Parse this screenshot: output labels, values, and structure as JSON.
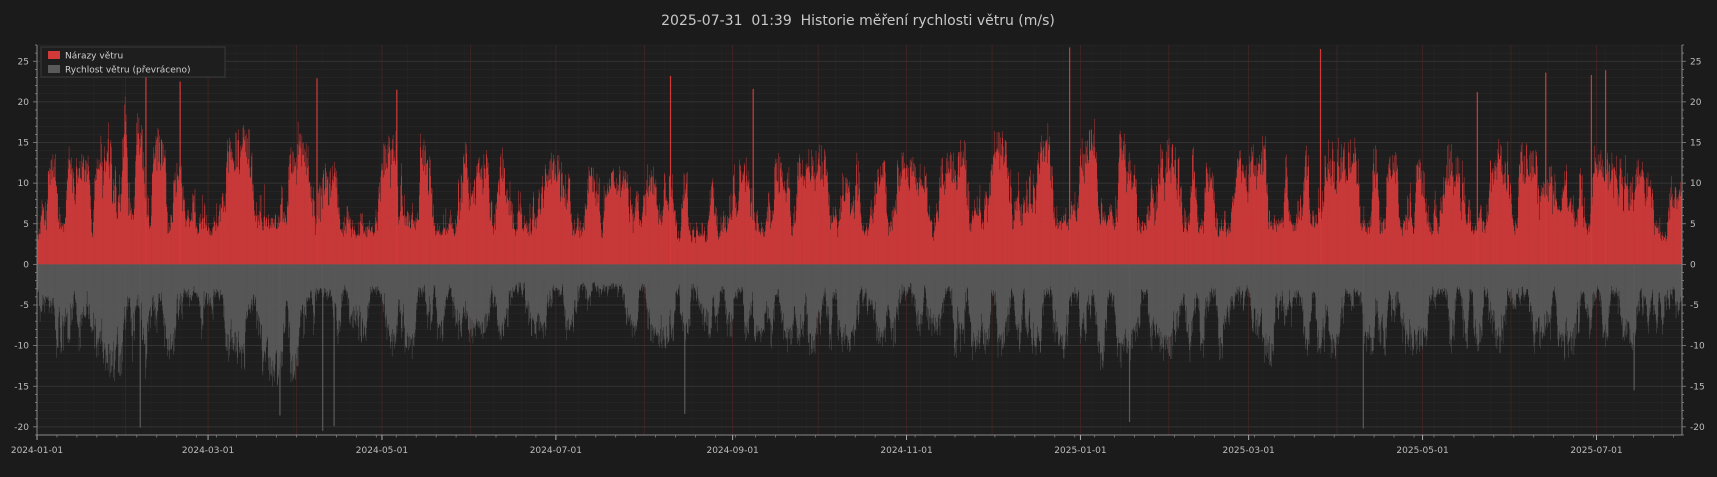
{
  "chart_data": {
    "type": "bar",
    "title": "2025-07-31  01:39  Historie měření rychlosti větru (m/s)",
    "xlabel": "",
    "ylabel": "",
    "x_range": [
      "2024-01-01",
      "2025-07-31"
    ],
    "ylim": [
      -21,
      27
    ],
    "y_ticks": [
      -20,
      -15,
      -10,
      -5,
      0,
      5,
      10,
      15,
      20,
      25
    ],
    "x_ticks": [
      "2024-01-01",
      "2024-03-01",
      "2024-05-01",
      "2024-07-01",
      "2024-09-01",
      "2024-11-01",
      "2025-01-01",
      "2025-03-01",
      "2025-05-01",
      "2025-07-01"
    ],
    "grid": true,
    "legend_position": "top-left",
    "series": [
      {
        "name": "Nárazy větru",
        "color": "#d23a3a",
        "sign": 1,
        "sampling": "hourly",
        "envelope": [
          [
            "2024-01-01",
            12
          ],
          [
            "2024-01-10",
            16
          ],
          [
            "2024-01-20",
            14
          ],
          [
            "2024-02-01",
            23
          ],
          [
            "2024-02-10",
            18
          ],
          [
            "2024-02-20",
            14
          ],
          [
            "2024-03-01",
            14
          ],
          [
            "2024-03-10",
            17
          ],
          [
            "2024-03-20",
            18
          ],
          [
            "2024-04-01",
            20
          ],
          [
            "2024-04-10",
            14
          ],
          [
            "2024-04-20",
            13
          ],
          [
            "2024-05-01",
            15
          ],
          [
            "2024-05-10",
            19
          ],
          [
            "2024-05-20",
            14
          ],
          [
            "2024-06-01",
            16
          ],
          [
            "2024-06-10",
            15
          ],
          [
            "2024-06-20",
            13
          ],
          [
            "2024-07-01",
            14
          ],
          [
            "2024-07-10",
            13
          ],
          [
            "2024-07-20",
            12
          ],
          [
            "2024-08-01",
            13
          ],
          [
            "2024-08-10",
            13
          ],
          [
            "2024-08-20",
            11
          ],
          [
            "2024-09-01",
            13
          ],
          [
            "2024-09-10",
            14
          ],
          [
            "2024-09-20",
            14
          ],
          [
            "2024-10-01",
            15
          ],
          [
            "2024-10-10",
            14
          ],
          [
            "2024-10-20",
            15
          ],
          [
            "2024-11-01",
            14
          ],
          [
            "2024-11-10",
            12
          ],
          [
            "2024-11-20",
            16
          ],
          [
            "2024-12-01",
            17
          ],
          [
            "2024-12-10",
            16
          ],
          [
            "2024-12-20",
            18
          ],
          [
            "2025-01-01",
            17
          ],
          [
            "2025-01-10",
            19
          ],
          [
            "2025-01-20",
            15
          ],
          [
            "2025-02-01",
            16
          ],
          [
            "2025-02-10",
            15
          ],
          [
            "2025-02-20",
            14
          ],
          [
            "2025-03-01",
            15
          ],
          [
            "2025-03-10",
            17
          ],
          [
            "2025-03-20",
            16
          ],
          [
            "2025-04-01",
            16
          ],
          [
            "2025-04-10",
            16
          ],
          [
            "2025-04-20",
            15
          ],
          [
            "2025-05-01",
            15
          ],
          [
            "2025-05-10",
            16
          ],
          [
            "2025-05-20",
            15
          ],
          [
            "2025-06-01",
            16
          ],
          [
            "2025-06-10",
            15
          ],
          [
            "2025-06-20",
            16
          ],
          [
            "2025-07-01",
            15
          ],
          [
            "2025-07-10",
            15
          ],
          [
            "2025-07-20",
            12
          ],
          [
            "2025-07-31",
            11
          ]
        ],
        "peaks": [
          [
            "2024-02-08",
            24.6
          ],
          [
            "2024-02-20",
            22.5
          ],
          [
            "2024-04-08",
            22.9
          ],
          [
            "2024-05-06",
            21.5
          ],
          [
            "2024-08-10",
            23.2
          ],
          [
            "2024-09-08",
            21.6
          ],
          [
            "2024-12-28",
            26.7
          ],
          [
            "2025-03-26",
            26.5
          ],
          [
            "2025-05-20",
            21.2
          ],
          [
            "2025-06-13",
            23.6
          ],
          [
            "2025-06-29",
            23.3
          ],
          [
            "2025-07-04",
            23.9
          ]
        ]
      },
      {
        "name": "Rychlost větru (převráceno)",
        "color": "#5a5a5a",
        "sign": -1,
        "sampling": "hourly",
        "envelope": [
          [
            "2024-01-01",
            11
          ],
          [
            "2024-01-10",
            13
          ],
          [
            "2024-01-20",
            12
          ],
          [
            "2024-02-01",
            16
          ],
          [
            "2024-02-10",
            15
          ],
          [
            "2024-02-20",
            11
          ],
          [
            "2024-03-01",
            11
          ],
          [
            "2024-03-10",
            13
          ],
          [
            "2024-03-20",
            15
          ],
          [
            "2024-04-01",
            16
          ],
          [
            "2024-04-10",
            11
          ],
          [
            "2024-04-20",
            10
          ],
          [
            "2024-05-01",
            11
          ],
          [
            "2024-05-10",
            12
          ],
          [
            "2024-05-20",
            10
          ],
          [
            "2024-06-01",
            10
          ],
          [
            "2024-06-10",
            10
          ],
          [
            "2024-06-20",
            9
          ],
          [
            "2024-07-01",
            10
          ],
          [
            "2024-07-10",
            9
          ],
          [
            "2024-07-20",
            9
          ],
          [
            "2024-08-01",
            10
          ],
          [
            "2024-08-10",
            11
          ],
          [
            "2024-08-20",
            9
          ],
          [
            "2024-09-01",
            10
          ],
          [
            "2024-09-10",
            11
          ],
          [
            "2024-09-20",
            11
          ],
          [
            "2024-10-01",
            12
          ],
          [
            "2024-10-10",
            11
          ],
          [
            "2024-10-20",
            11
          ],
          [
            "2024-11-01",
            10
          ],
          [
            "2024-11-10",
            9
          ],
          [
            "2024-11-20",
            12
          ],
          [
            "2024-12-01",
            12
          ],
          [
            "2024-12-10",
            11
          ],
          [
            "2024-12-20",
            12
          ],
          [
            "2025-01-01",
            12
          ],
          [
            "2025-01-10",
            14
          ],
          [
            "2025-01-20",
            12
          ],
          [
            "2025-02-01",
            12
          ],
          [
            "2025-02-10",
            13
          ],
          [
            "2025-02-20",
            12
          ],
          [
            "2025-03-01",
            11
          ],
          [
            "2025-03-10",
            13
          ],
          [
            "2025-03-20",
            13
          ],
          [
            "2025-04-01",
            12
          ],
          [
            "2025-04-10",
            11
          ],
          [
            "2025-04-20",
            12
          ],
          [
            "2025-05-01",
            11
          ],
          [
            "2025-05-10",
            12
          ],
          [
            "2025-05-20",
            11
          ],
          [
            "2025-06-01",
            12
          ],
          [
            "2025-06-10",
            11
          ],
          [
            "2025-06-20",
            12
          ],
          [
            "2025-07-01",
            11
          ],
          [
            "2025-07-10",
            11
          ],
          [
            "2025-07-20",
            10
          ],
          [
            "2025-07-31",
            9
          ]
        ],
        "peaks": [
          [
            "2024-02-06",
            20.1
          ],
          [
            "2024-04-10",
            20.5
          ],
          [
            "2024-04-14",
            19.9
          ],
          [
            "2024-03-26",
            18.6
          ],
          [
            "2024-08-15",
            18.4
          ],
          [
            "2025-01-18",
            19.4
          ],
          [
            "2025-04-10",
            20.2
          ],
          [
            "2025-07-14",
            15.5
          ]
        ]
      }
    ]
  }
}
